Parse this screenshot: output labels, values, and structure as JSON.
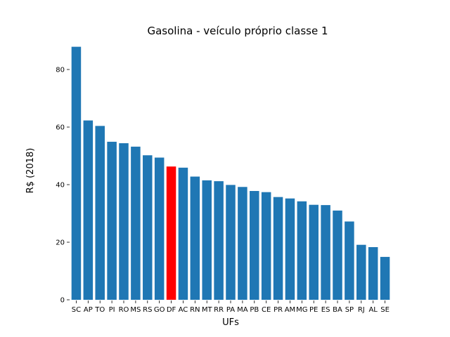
{
  "chart_data": {
    "type": "bar",
    "title": "Gasolina - veículo próprio classe 1",
    "xlabel": "UFs",
    "ylabel": "R$ (2018)",
    "ylim": [
      0,
      90
    ],
    "yticks": [
      0,
      20,
      40,
      60,
      80
    ],
    "grid": false,
    "categories": [
      "SC",
      "AP",
      "TO",
      "PI",
      "RO",
      "MS",
      "RS",
      "GO",
      "DF",
      "AC",
      "RN",
      "MT",
      "RR",
      "PA",
      "MA",
      "PB",
      "CE",
      "PR",
      "AM",
      "MG",
      "PE",
      "ES",
      "BA",
      "SP",
      "RJ",
      "AL",
      "SE"
    ],
    "values": [
      87.9,
      62.3,
      60.4,
      54.9,
      54.4,
      53.2,
      50.2,
      49.4,
      46.3,
      45.9,
      42.8,
      41.5,
      41.2,
      39.9,
      39.2,
      37.8,
      37.4,
      35.7,
      35.2,
      34.2,
      33.0,
      32.9,
      31.0,
      27.2,
      19.1,
      18.3,
      14.9
    ],
    "colors": {
      "default": "#1f77b4",
      "highlight": "#ff0000"
    },
    "highlight_category": "DF"
  }
}
